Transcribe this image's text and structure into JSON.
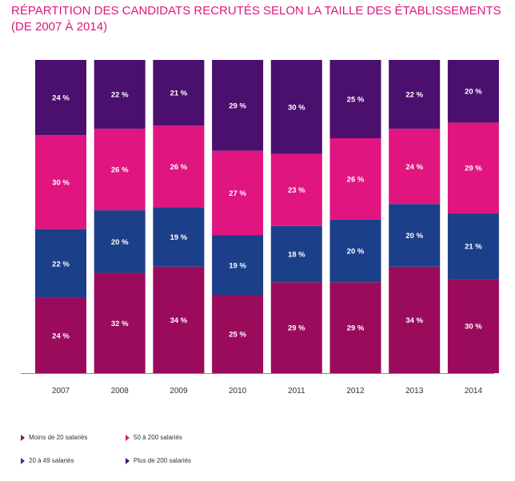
{
  "title": {
    "line1": "RÉPARTITION DES CANDIDATS RECRUTÉS SELON LA TAILLE DES ÉTABLISSEMENTS",
    "line2": "(DE 2007 À 2014)"
  },
  "colors": {
    "title": "#e0157f",
    "moins20": "#9a0b5c",
    "s20_49": "#1c3f8a",
    "s50_200": "#e0157f",
    "plus200": "#4b0f6e"
  },
  "legend": {
    "moins20": "Moins de 20 salariés",
    "s50_200": "50 à 200 salariés",
    "s20_49": "20 à 49 salariés",
    "plus200": "Plus de 200 salariés"
  },
  "chart_data": {
    "type": "bar",
    "stacked": true,
    "categories": [
      "2007",
      "2008",
      "2009",
      "2010",
      "2011",
      "2012",
      "2013",
      "2014"
    ],
    "series": [
      {
        "name": "Moins de 20 salariés",
        "values": [
          24,
          32,
          34,
          25,
          29,
          29,
          34,
          30
        ],
        "color": "#9a0b5c"
      },
      {
        "name": "20 à 49 salariés",
        "values": [
          22,
          20,
          19,
          19,
          18,
          20,
          20,
          21
        ],
        "color": "#1c3f8a"
      },
      {
        "name": "50 à 200 salariés",
        "values": [
          30,
          26,
          26,
          27,
          23,
          26,
          24,
          29
        ],
        "color": "#e0157f"
      },
      {
        "name": "Plus de 200 salariés",
        "values": [
          24,
          22,
          21,
          29,
          30,
          25,
          22,
          20
        ],
        "color": "#4b0f6e"
      }
    ],
    "value_suffix": " %",
    "ylim": [
      0,
      100
    ],
    "grid": false,
    "legend_position": "bottom"
  }
}
